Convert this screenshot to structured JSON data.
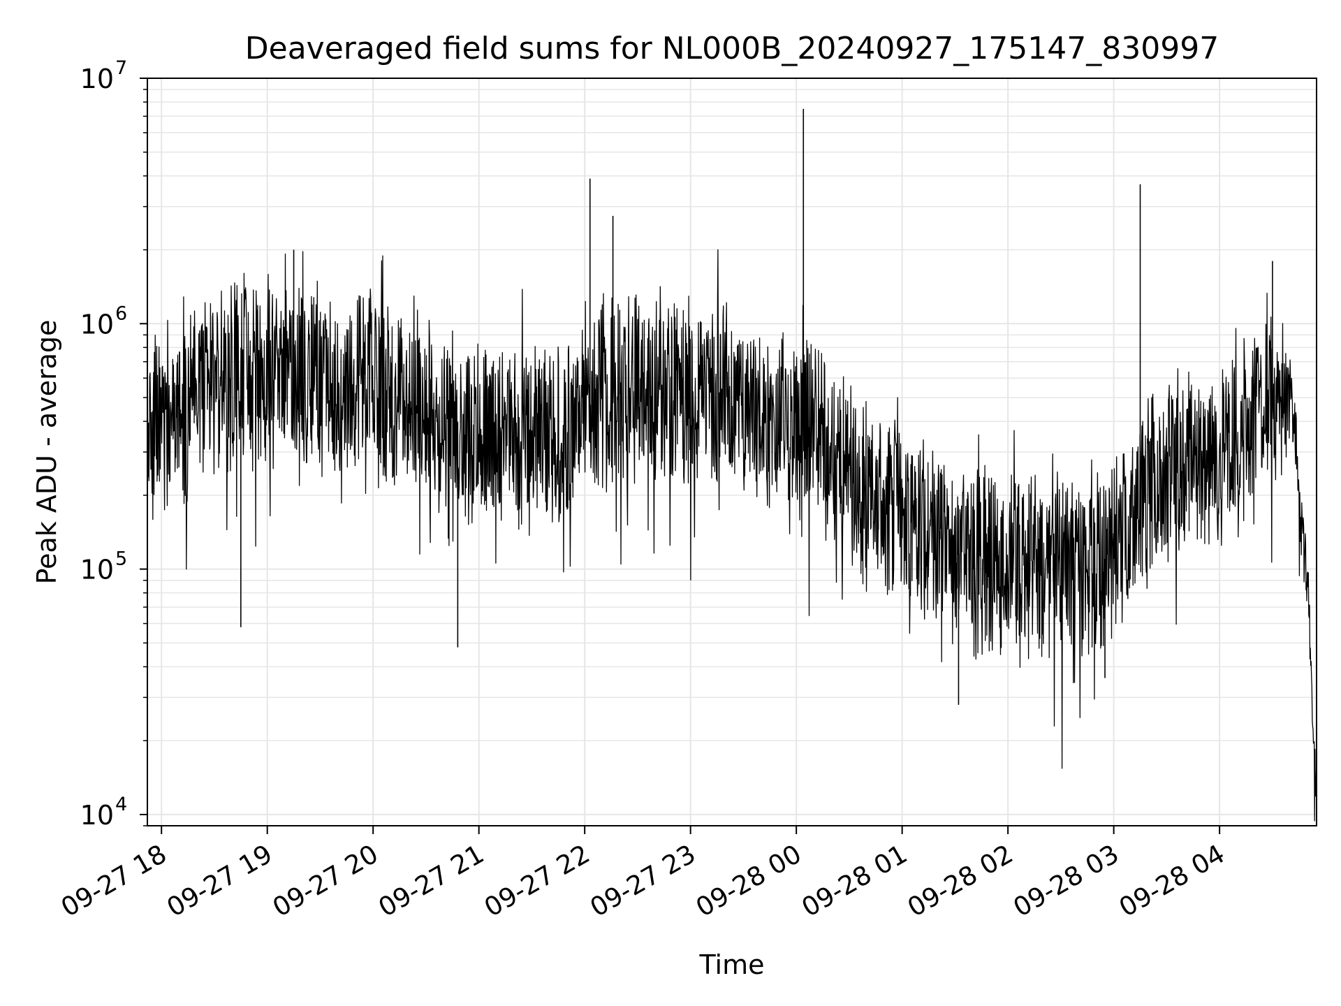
{
  "chart_data": {
    "type": "line",
    "title": "Deaveraged field sums for NL000B_20240927_175147_830997",
    "xlabel": "Time",
    "ylabel": "Peak ADU - average",
    "yscale": "log",
    "ylim": [
      9000,
      10000000
    ],
    "xlim": [
      "2024-09-27 17:52",
      "2024-09-28 04:55"
    ],
    "grid": true,
    "line_color": "#000000",
    "grid_color": "#e6e6e6",
    "x_ticks": [
      {
        "value": "2024-09-27 18:00",
        "label": "09-27 18"
      },
      {
        "value": "2024-09-27 19:00",
        "label": "09-27 19"
      },
      {
        "value": "2024-09-27 20:00",
        "label": "09-27 20"
      },
      {
        "value": "2024-09-27 21:00",
        "label": "09-27 21"
      },
      {
        "value": "2024-09-27 22:00",
        "label": "09-27 22"
      },
      {
        "value": "2024-09-27 23:00",
        "label": "09-27 23"
      },
      {
        "value": "2024-09-28 00:00",
        "label": "09-28 00"
      },
      {
        "value": "2024-09-28 01:00",
        "label": "09-28 01"
      },
      {
        "value": "2024-09-28 02:00",
        "label": "09-28 02"
      },
      {
        "value": "2024-09-28 03:00",
        "label": "09-28 03"
      },
      {
        "value": "2024-09-28 04:00",
        "label": "09-28 04"
      }
    ],
    "y_ticks": [
      {
        "value": 10000,
        "base": "10",
        "exp": "4"
      },
      {
        "value": 100000,
        "base": "10",
        "exp": "5"
      },
      {
        "value": 1000000,
        "base": "10",
        "exp": "6"
      },
      {
        "value": 10000000,
        "base": "10",
        "exp": "7"
      }
    ],
    "series": [
      {
        "x": [
          "2024-09-27 17:52",
          "2024-09-27 18:00",
          "2024-09-27 18:12",
          "2024-09-27 18:25",
          "2024-09-27 18:40",
          "2024-09-27 18:55",
          "2024-09-27 19:10",
          "2024-09-27 19:25",
          "2024-09-27 19:40",
          "2024-09-27 19:55",
          "2024-09-27 20:10",
          "2024-09-27 20:25",
          "2024-09-27 20:40",
          "2024-09-27 20:55",
          "2024-09-27 21:10",
          "2024-09-27 21:25",
          "2024-09-27 21:40",
          "2024-09-27 21:55",
          "2024-09-27 22:10",
          "2024-09-27 22:25",
          "2024-09-27 22:40",
          "2024-09-27 22:55",
          "2024-09-27 23:10",
          "2024-09-27 23:25",
          "2024-09-27 23:40",
          "2024-09-27 23:55",
          "2024-09-28 00:10",
          "2024-09-28 00:25",
          "2024-09-28 00:40",
          "2024-09-28 00:55",
          "2024-09-28 01:10",
          "2024-09-28 01:25",
          "2024-09-28 01:40",
          "2024-09-28 01:55",
          "2024-09-28 02:10",
          "2024-09-28 02:25",
          "2024-09-28 02:40",
          "2024-09-28 02:55",
          "2024-09-28 03:10",
          "2024-09-28 03:25",
          "2024-09-28 03:40",
          "2024-09-28 03:55",
          "2024-09-28 04:10",
          "2024-09-28 04:25",
          "2024-09-28 04:40",
          "2024-09-28 04:50",
          "2024-09-28 04:55"
        ],
        "y": [
          280000,
          450000,
          420000,
          560000,
          620000,
          650000,
          640000,
          600000,
          580000,
          560000,
          520000,
          480000,
          420000,
          380000,
          360000,
          340000,
          330000,
          380000,
          520000,
          560000,
          560000,
          540000,
          520000,
          480000,
          420000,
          400000,
          380000,
          260000,
          200000,
          180000,
          150000,
          120000,
          110000,
          105000,
          100000,
          100000,
          105000,
          110000,
          160000,
          230000,
          270000,
          300000,
          320000,
          500000,
          600000,
          80000,
          13000
        ]
      }
    ],
    "spikes": [
      {
        "x": "2024-09-27 19:15",
        "y": 2000000
      },
      {
        "x": "2024-09-27 22:03",
        "y": 3900000
      },
      {
        "x": "2024-09-27 22:16",
        "y": 2750000
      },
      {
        "x": "2024-09-28 00:04",
        "y": 7500000
      },
      {
        "x": "2024-09-28 03:15",
        "y": 3700000
      },
      {
        "x": "2024-09-28 04:30",
        "y": 1800000
      }
    ],
    "dips": [
      {
        "x": "2024-09-27 18:45",
        "y": 58000
      },
      {
        "x": "2024-09-27 20:48",
        "y": 48000
      },
      {
        "x": "2024-09-28 01:32",
        "y": 28000
      },
      {
        "x": "2024-09-28 02:55",
        "y": 36000
      }
    ]
  }
}
